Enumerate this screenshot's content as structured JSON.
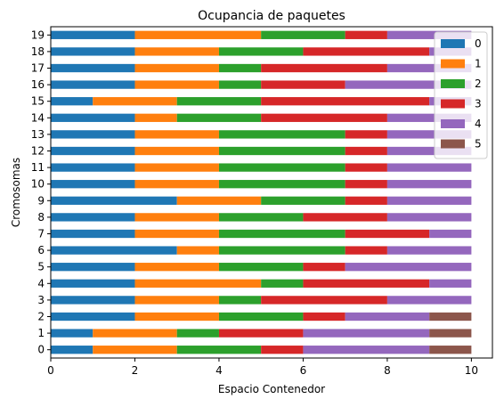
{
  "chart_data": {
    "type": "bar",
    "orientation": "horizontal",
    "stacked": true,
    "title": "Ocupancia de paquetes",
    "xlabel": "Espacio Contenedor",
    "ylabel": "Cromosomas",
    "xlim": [
      0,
      10.5
    ],
    "xticks": [
      "0",
      "2",
      "4",
      "6",
      "8",
      "10"
    ],
    "categories": [
      "0",
      "1",
      "2",
      "3",
      "4",
      "5",
      "6",
      "7",
      "8",
      "9",
      "10",
      "11",
      "12",
      "13",
      "14",
      "15",
      "16",
      "17",
      "18",
      "19"
    ],
    "legend_position": "upper-right",
    "grid": false,
    "series": [
      {
        "name": "0",
        "color": "#1f77b4",
        "values": [
          1,
          1,
          2,
          2,
          2,
          2,
          3,
          2,
          2,
          3,
          2,
          2,
          2,
          2,
          2,
          1,
          2,
          2,
          2,
          2
        ]
      },
      {
        "name": "1",
        "color": "#ff7f0e",
        "values": [
          2,
          2,
          2,
          2,
          3,
          2,
          1,
          2,
          2,
          2,
          2,
          2,
          2,
          2,
          1,
          2,
          2,
          2,
          2,
          3
        ]
      },
      {
        "name": "2",
        "color": "#2ca02c",
        "values": [
          2,
          1,
          2,
          1,
          1,
          2,
          3,
          3,
          2,
          2,
          3,
          3,
          3,
          3,
          2,
          2,
          1,
          1,
          2,
          2
        ]
      },
      {
        "name": "3",
        "color": "#d62728",
        "values": [
          1,
          2,
          1,
          3,
          3,
          1,
          1,
          2,
          2,
          1,
          1,
          1,
          1,
          1,
          3,
          4,
          2,
          3,
          3,
          1
        ]
      },
      {
        "name": "4",
        "color": "#9467bd",
        "values": [
          3,
          3,
          2,
          2,
          1,
          3,
          2,
          1,
          2,
          2,
          2,
          2,
          2,
          2,
          2,
          1,
          3,
          2,
          1,
          2
        ]
      },
      {
        "name": "5",
        "color": "#8c564b",
        "values": [
          1,
          1,
          1,
          0,
          0,
          0,
          0,
          0,
          0,
          0,
          0,
          0,
          0,
          0,
          0,
          0,
          0,
          0,
          0,
          0
        ]
      }
    ]
  }
}
